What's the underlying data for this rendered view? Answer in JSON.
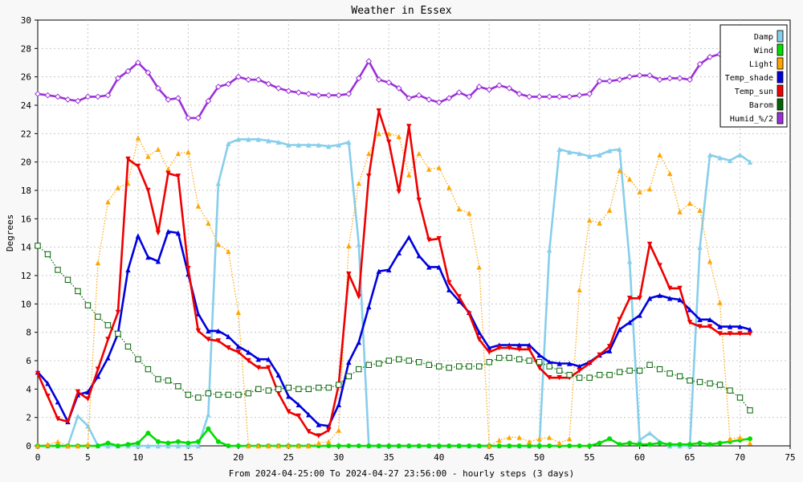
{
  "chart_data": {
    "type": "line",
    "title": "Weather in Essex",
    "xlabel": "From 2024-04-25:00 To 2024-04-27 23:56:00 - hourly steps (3 days)",
    "ylabel": "Degrees",
    "xlim": [
      0,
      75
    ],
    "ylim": [
      0,
      30
    ],
    "xticks": [
      0,
      5,
      10,
      15,
      20,
      25,
      30,
      35,
      40,
      45,
      50,
      55,
      60,
      65,
      70,
      75
    ],
    "yticks": [
      0,
      2,
      4,
      6,
      8,
      10,
      12,
      14,
      16,
      18,
      20,
      22,
      24,
      26,
      28,
      30
    ],
    "grid": true,
    "legend_position": "top-right",
    "series": [
      {
        "name": "Damp",
        "color": "#87ceeb",
        "marker": "triangle-up",
        "style": "solid",
        "values": [
          0,
          0,
          0,
          0,
          2.1,
          1.4,
          0,
          0,
          0,
          0,
          0,
          0,
          0,
          0,
          0,
          0,
          0,
          2.2,
          18.5,
          21.3,
          21.6,
          21.6,
          21.6,
          21.5,
          21.4,
          21.2,
          21.2,
          21.2,
          21.2,
          21.1,
          21.2,
          21.4,
          14.2,
          0,
          0,
          0,
          0,
          0,
          0,
          0,
          0,
          0,
          0,
          0,
          0,
          0,
          0,
          0,
          0,
          0,
          0,
          13.8,
          20.9,
          20.7,
          20.6,
          20.4,
          20.5,
          20.8,
          20.9,
          13.0,
          0.4,
          0.9,
          0.3,
          0,
          0,
          0,
          14.0,
          20.5,
          20.3,
          20.1,
          20.5,
          20.0
        ]
      },
      {
        "name": "Wind",
        "color": "#00dd00",
        "marker": "circle",
        "style": "solid",
        "values": [
          0,
          0,
          0,
          0,
          0,
          0,
          0,
          0.2,
          0,
          0.1,
          0.2,
          0.9,
          0.3,
          0.2,
          0.3,
          0.2,
          0.3,
          1.2,
          0.3,
          0,
          0,
          0,
          0,
          0,
          0,
          0,
          0,
          0,
          0,
          0,
          0,
          0,
          0,
          0,
          0,
          0,
          0,
          0,
          0,
          0,
          0,
          0,
          0,
          0,
          0,
          0,
          0,
          0,
          0,
          0,
          0,
          0,
          0,
          0,
          0,
          0,
          0.2,
          0.5,
          0.1,
          0.2,
          0.1,
          0.1,
          0.2,
          0.1,
          0.1,
          0.1,
          0.2,
          0.1,
          0.2,
          0.3,
          0.4,
          0.5
        ]
      },
      {
        "name": "Light",
        "color": "#ffa500",
        "marker": "triangle-up",
        "style": "dotted",
        "values": [
          0,
          0.1,
          0.3,
          0,
          0,
          0.1,
          12.9,
          17.2,
          18.2,
          18.5,
          21.7,
          20.4,
          20.9,
          19.5,
          20.6,
          20.7,
          16.9,
          15.7,
          14.2,
          13.7,
          9.4,
          0,
          0,
          0,
          0,
          0,
          0,
          0,
          0.2,
          0.3,
          1.1,
          14.1,
          18.5,
          20.6,
          22.0,
          22.0,
          21.8,
          19.1,
          20.6,
          19.5,
          19.6,
          18.2,
          16.7,
          16.4,
          12.6,
          0,
          0.4,
          0.6,
          0.6,
          0.3,
          0.5,
          0.6,
          0.2,
          0.5,
          11.0,
          15.9,
          15.7,
          16.6,
          19.4,
          18.8,
          17.9,
          18.1,
          20.5,
          19.2,
          16.5,
          17.1,
          16.6,
          13.0,
          10.1,
          0.5,
          0.6,
          0.2
        ]
      },
      {
        "name": "Temp_shade",
        "color": "#0000dd",
        "marker": "triangle-up",
        "style": "solid",
        "values": [
          5.2,
          4.4,
          3.1,
          1.7,
          3.6,
          3.8,
          4.9,
          6.2,
          7.9,
          12.4,
          14.8,
          13.3,
          13.0,
          15.1,
          15.0,
          12.1,
          9.3,
          8.1,
          8.1,
          7.7,
          7.0,
          6.6,
          6.1,
          6.1,
          5.0,
          3.5,
          2.9,
          2.2,
          1.5,
          1.4,
          2.9,
          5.9,
          7.3,
          9.8,
          12.3,
          12.4,
          13.6,
          14.7,
          13.4,
          12.6,
          12.6,
          11.0,
          10.2,
          9.4,
          8.0,
          6.9,
          7.1,
          7.1,
          7.1,
          7.1,
          6.4,
          5.9,
          5.8,
          5.8,
          5.6,
          5.9,
          6.4,
          6.7,
          8.2,
          8.7,
          9.2,
          10.4,
          10.6,
          10.4,
          10.3,
          9.6,
          8.9,
          8.9,
          8.4,
          8.4,
          8.4,
          8.2
        ]
      },
      {
        "name": "Temp_sun",
        "color": "#ee0000",
        "marker": "triangle-down",
        "style": "solid",
        "values": [
          5.1,
          3.5,
          1.9,
          1.7,
          3.8,
          3.3,
          5.4,
          7.5,
          9.4,
          20.2,
          19.7,
          18.0,
          15.0,
          19.2,
          19.0,
          12.5,
          8.1,
          7.5,
          7.4,
          6.9,
          6.6,
          6.0,
          5.5,
          5.5,
          3.7,
          2.4,
          2.1,
          1.0,
          0.7,
          1.1,
          4.3,
          12.1,
          10.5,
          19.0,
          23.6,
          21.4,
          17.9,
          22.5,
          17.3,
          14.5,
          14.6,
          11.5,
          10.5,
          9.3,
          7.5,
          6.6,
          6.9,
          6.9,
          6.8,
          6.8,
          5.5,
          4.8,
          4.8,
          4.8,
          5.3,
          5.8,
          6.4,
          7.0,
          8.9,
          10.4,
          10.4,
          14.2,
          12.7,
          11.1,
          11.1,
          8.7,
          8.4,
          8.4,
          7.9,
          7.9,
          7.9,
          7.9
        ]
      },
      {
        "name": "Barom",
        "color": "#006400",
        "marker": "square",
        "style": "dotted",
        "values": [
          14.1,
          13.5,
          12.4,
          11.7,
          10.9,
          9.9,
          9.1,
          8.5,
          7.9,
          7.0,
          6.1,
          5.4,
          4.7,
          4.6,
          4.2,
          3.6,
          3.4,
          3.7,
          3.6,
          3.6,
          3.6,
          3.7,
          4.0,
          3.9,
          4.0,
          4.1,
          4.0,
          4.0,
          4.1,
          4.1,
          4.3,
          4.9,
          5.4,
          5.7,
          5.8,
          6.0,
          6.1,
          6.0,
          5.9,
          5.7,
          5.6,
          5.5,
          5.6,
          5.6,
          5.6,
          5.9,
          6.2,
          6.2,
          6.1,
          6.0,
          5.9,
          5.6,
          5.3,
          5.0,
          4.8,
          4.8,
          5.0,
          5.0,
          5.2,
          5.3,
          5.3,
          5.7,
          5.4,
          5.1,
          4.9,
          4.6,
          4.5,
          4.4,
          4.3,
          3.9,
          3.4,
          2.5
        ]
      },
      {
        "name": "Humid_%/2",
        "color": "#9b30d8",
        "marker": "diamond",
        "style": "solid",
        "values": [
          24.8,
          24.7,
          24.6,
          24.4,
          24.3,
          24.6,
          24.6,
          24.7,
          25.9,
          26.4,
          27.0,
          26.3,
          25.2,
          24.4,
          24.5,
          23.1,
          23.1,
          24.3,
          25.3,
          25.5,
          26.0,
          25.8,
          25.8,
          25.5,
          25.2,
          25.0,
          24.9,
          24.8,
          24.7,
          24.7,
          24.7,
          24.8,
          25.9,
          27.1,
          25.8,
          25.6,
          25.2,
          24.5,
          24.7,
          24.4,
          24.2,
          24.5,
          24.9,
          24.6,
          25.3,
          25.1,
          25.4,
          25.2,
          24.8,
          24.6,
          24.6,
          24.6,
          24.6,
          24.6,
          24.7,
          24.8,
          25.7,
          25.7,
          25.8,
          26.0,
          26.1,
          26.1,
          25.8,
          25.9,
          25.9,
          25.8,
          26.9,
          27.4,
          27.6,
          27.6,
          27.6,
          27.6
        ]
      }
    ]
  }
}
